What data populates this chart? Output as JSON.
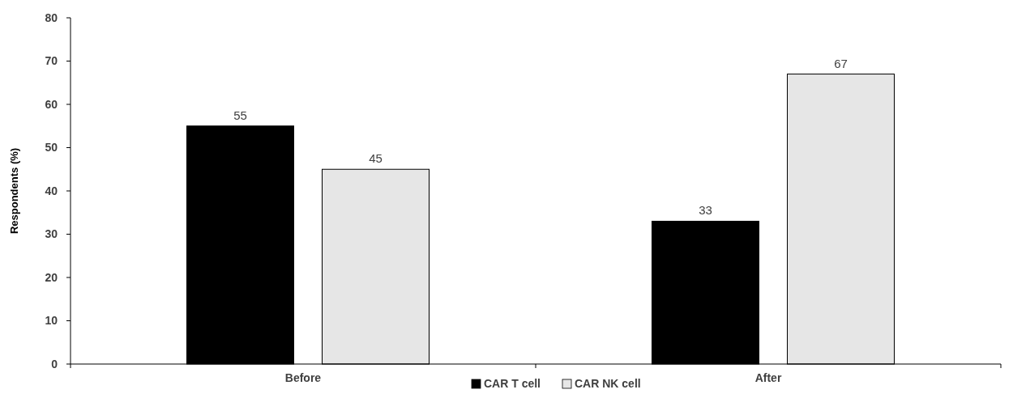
{
  "chart_data": {
    "type": "bar",
    "ylabel": "Respondents (%)",
    "categories": [
      "Before",
      "After"
    ],
    "series": [
      {
        "name": "CAR T cell",
        "color": "#000000",
        "values": [
          55,
          33
        ]
      },
      {
        "name": "CAR NK cell",
        "color": "#e6e6e6",
        "values": [
          45,
          67
        ]
      }
    ],
    "ylim": [
      0,
      80
    ],
    "yticks": [
      0,
      10,
      20,
      30,
      40,
      50,
      60,
      70,
      80
    ],
    "data_labels": true,
    "legend": "bottom",
    "grid": false
  }
}
